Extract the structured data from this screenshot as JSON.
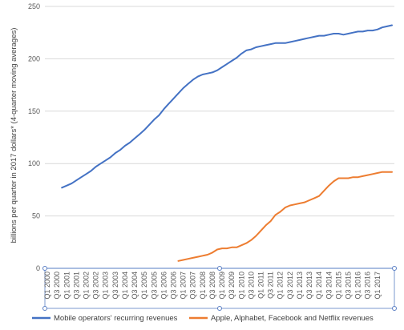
{
  "chart_data": {
    "type": "line",
    "title": "",
    "xlabel": "",
    "ylabel": "billions per quarter in 2017 dollars* (4-quarter moving averages)",
    "ylim": [
      0,
      250
    ],
    "yticks": [
      0,
      50,
      100,
      150,
      200,
      250
    ],
    "grid": "horizontal",
    "legend_position": "bottom",
    "categories": [
      "Q1 2000",
      "Q2 2000",
      "Q3 2000",
      "Q4 2000",
      "Q1 2001",
      "Q2 2001",
      "Q3 2001",
      "Q4 2001",
      "Q1 2002",
      "Q2 2002",
      "Q3 2002",
      "Q4 2002",
      "Q1 2003",
      "Q2 2003",
      "Q3 2003",
      "Q4 2003",
      "Q1 2004",
      "Q2 2004",
      "Q3 2004",
      "Q4 2004",
      "Q1 2005",
      "Q2 2005",
      "Q3 2005",
      "Q4 2005",
      "Q1 2006",
      "Q2 2006",
      "Q3 2006",
      "Q4 2006",
      "Q1 2007",
      "Q2 2007",
      "Q3 2007",
      "Q4 2007",
      "Q1 2008",
      "Q2 2008",
      "Q3 2008",
      "Q4 2008",
      "Q1 2009",
      "Q2 2009",
      "Q3 2009",
      "Q4 2009",
      "Q1 2010",
      "Q2 2010",
      "Q3 2010",
      "Q4 2010",
      "Q1 2011",
      "Q2 2011",
      "Q3 2011",
      "Q4 2011",
      "Q1 2012",
      "Q2 2012",
      "Q3 2012",
      "Q4 2012",
      "Q1 2013",
      "Q2 2013",
      "Q3 2013",
      "Q4 2013",
      "Q1 2014",
      "Q2 2014",
      "Q3 2014",
      "Q4 2014",
      "Q1 2015",
      "Q2 2015",
      "Q3 2015",
      "Q4 2015",
      "Q1 2016",
      "Q2 2016",
      "Q3 2016",
      "Q4 2016",
      "Q1 2017",
      "Q2 2017",
      "Q3 2017",
      "Q4 2017"
    ],
    "tick_labels": [
      "Q1 2000",
      "Q3 2000",
      "Q1 2001",
      "Q3 2001",
      "Q1 2002",
      "Q3 2002",
      "Q1 2003",
      "Q3 2003",
      "Q1 2004",
      "Q3 2004",
      "Q1 2005",
      "Q3 2005",
      "Q1 2006",
      "Q3 2006",
      "Q1 2007",
      "Q3 2007",
      "Q1 2008",
      "Q3 2008",
      "Q1 2009",
      "Q3 2009",
      "Q1 2010",
      "Q3 2010",
      "Q1 2011",
      "Q3 2011",
      "Q1 2012",
      "Q3 2012",
      "Q1 2013",
      "Q3 2013",
      "Q1 2014",
      "Q3 2014",
      "Q1 2015",
      "Q3 2015",
      "Q1 2016",
      "Q3 2016",
      "Q1 2017"
    ],
    "series": [
      {
        "name": "Mobile operators' recurring revenues",
        "color": "#4472c4",
        "values": [
          null,
          null,
          null,
          77,
          79,
          81,
          84,
          87,
          90,
          93,
          97,
          100,
          103,
          106,
          110,
          113,
          117,
          120,
          124,
          128,
          132,
          137,
          142,
          146,
          152,
          157,
          162,
          167,
          172,
          176,
          180,
          183,
          185,
          186,
          187,
          189,
          192,
          195,
          198,
          201,
          205,
          208,
          209,
          211,
          212,
          213,
          214,
          215,
          215,
          215,
          216,
          217,
          218,
          219,
          220,
          221,
          222,
          222,
          223,
          224,
          224,
          223,
          224,
          225,
          226,
          226,
          227,
          227,
          228,
          230,
          231,
          232
        ]
      },
      {
        "name": "Apple, Alphabet, Facebook and Netflix revenues",
        "color": "#ed7d31",
        "values": [
          null,
          null,
          null,
          null,
          null,
          null,
          null,
          null,
          null,
          null,
          null,
          null,
          null,
          null,
          null,
          null,
          null,
          null,
          null,
          null,
          null,
          null,
          null,
          null,
          null,
          null,
          null,
          7,
          8,
          9,
          10,
          11,
          12,
          13,
          15,
          18,
          19,
          19,
          20,
          20,
          22,
          24,
          27,
          31,
          36,
          41,
          45,
          51,
          54,
          58,
          60,
          61,
          62,
          63,
          65,
          67,
          69,
          74,
          79,
          83,
          86,
          86,
          86,
          87,
          87,
          88,
          89,
          90,
          91,
          92,
          92,
          92
        ]
      }
    ]
  }
}
